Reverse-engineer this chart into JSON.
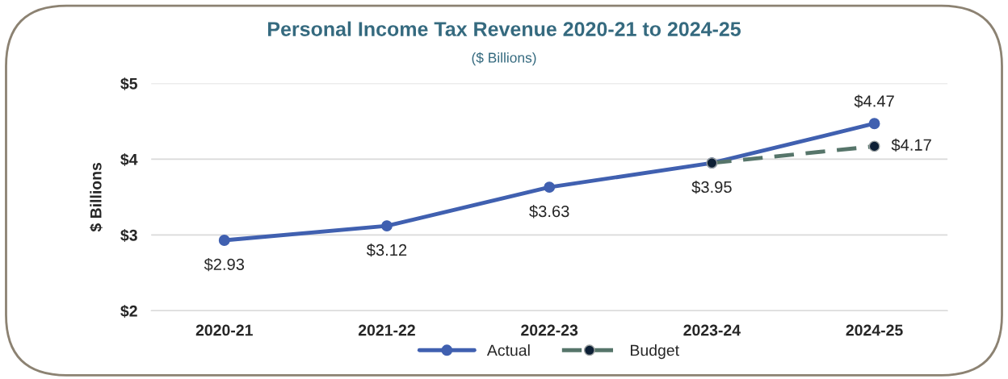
{
  "chart_data": {
    "type": "line",
    "title": "Personal Income Tax Revenue 2020-21 to 2024-25",
    "subtitle": "($ Billions)",
    "ylabel": "$ Billions",
    "categories": [
      "2020-21",
      "2021-22",
      "2022-23",
      "2023-24",
      "2024-25"
    ],
    "series": [
      {
        "name": "Actual",
        "color": "#4060b0",
        "values": [
          2.93,
          3.12,
          3.63,
          3.95,
          4.47
        ],
        "marker": "circle",
        "line_style": "solid",
        "value_labels": [
          "$2.93",
          "$3.12",
          "$3.63",
          "$3.95",
          "$4.47"
        ]
      },
      {
        "name": "Budget",
        "color": "#56756a",
        "values": [
          null,
          null,
          null,
          3.95,
          4.17
        ],
        "marker": "circle",
        "line_style": "dashed",
        "value_labels": [
          null,
          null,
          null,
          null,
          "$4.17"
        ]
      }
    ],
    "ylim": [
      2,
      5
    ],
    "yticks": [
      {
        "value": 2,
        "label": "$2"
      },
      {
        "value": 3,
        "label": "$3"
      },
      {
        "value": 4,
        "label": "$4"
      },
      {
        "value": 5,
        "label": "$5"
      }
    ],
    "grid": "y",
    "legend": "bottom"
  }
}
